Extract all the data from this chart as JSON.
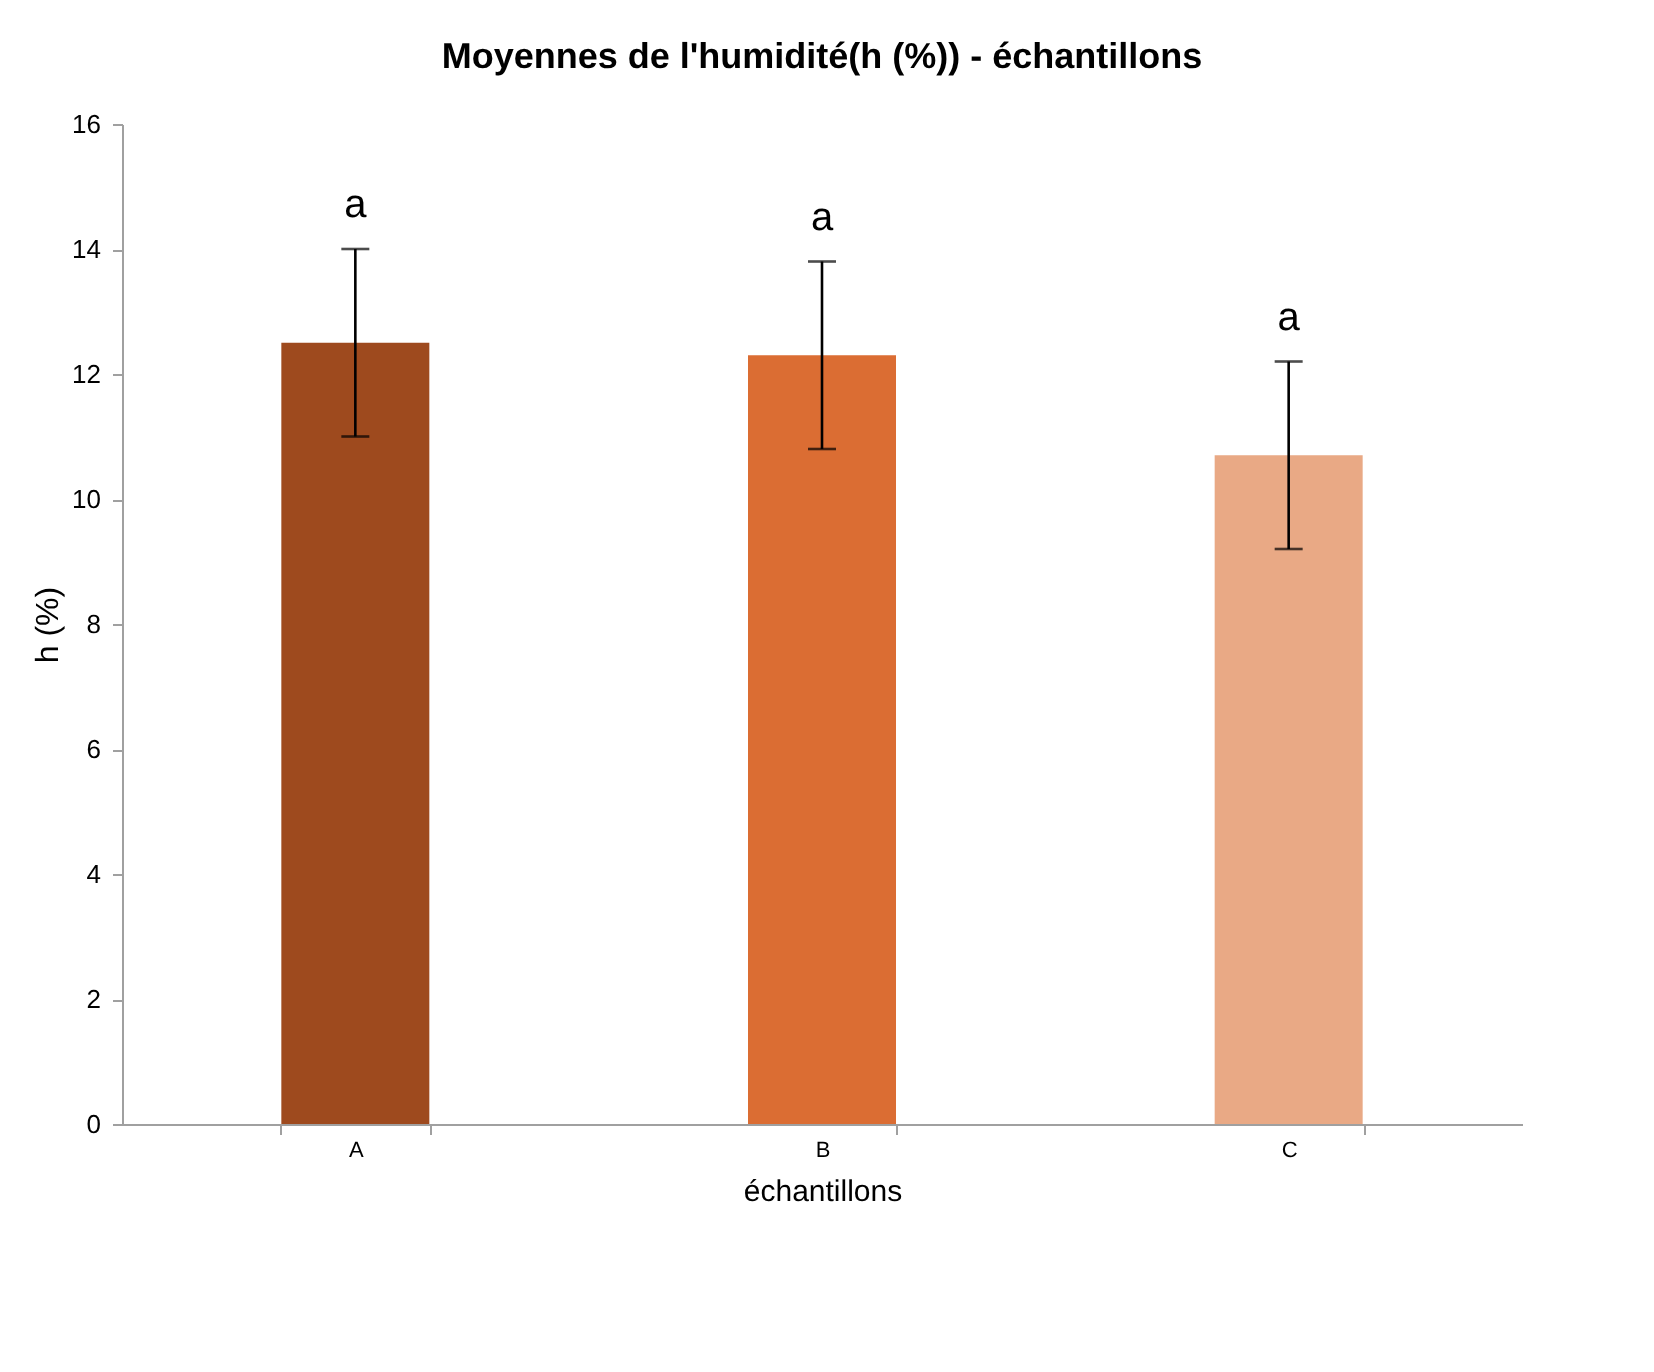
{
  "chart_data": {
    "type": "bar",
    "title": "Moyennes de l'humidité(h (%)) - échantillons",
    "xlabel": "échantillons",
    "ylabel": "h (%)",
    "categories": [
      "A",
      "B",
      "C"
    ],
    "values": [
      12.5,
      12.3,
      10.7
    ],
    "colors": [
      "#9e4a1e",
      "#db6d33",
      "#e9a985"
    ],
    "errors": [
      1.5,
      1.5,
      1.5
    ],
    "ylim": [
      0,
      16
    ],
    "yticks": [
      0,
      2,
      4,
      6,
      8,
      10,
      12,
      14,
      16
    ],
    "grid": false,
    "annotations": [
      "a",
      "a",
      "a"
    ]
  }
}
